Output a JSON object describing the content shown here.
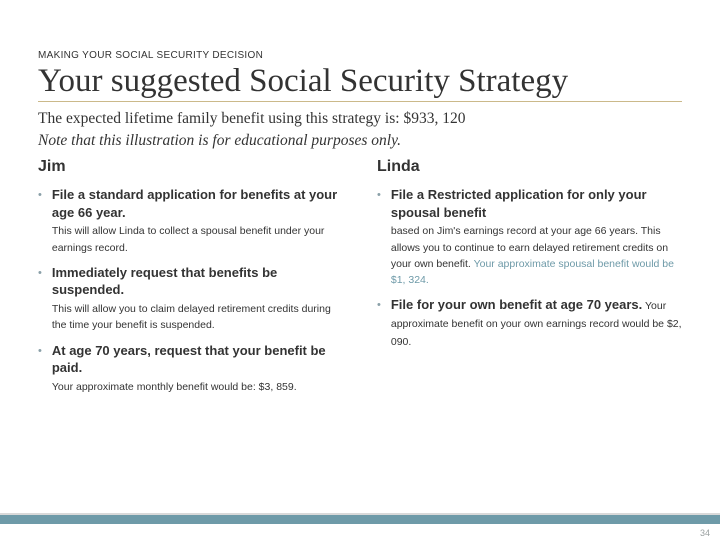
{
  "kicker": "MAKING YOUR SOCIAL SECURITY DECISION",
  "title": "Your suggested Social Security Strategy",
  "subtitle_prefix": "The expected lifetime family benefit using this strategy is: ",
  "subtitle_value": "$933, 120",
  "note": "Note that this illustration is for educational purposes only.",
  "left": {
    "name": "Jim",
    "items": [
      {
        "heading": "File a standard application for benefits at your age 66 year.",
        "detail": "This will allow Linda to collect a spousal benefit under your earnings record."
      },
      {
        "heading": "Immediately request that benefits be suspended.",
        "detail": "This will allow you to claim delayed retirement credits during the time your benefit is suspended."
      },
      {
        "heading": "At age 70 years, request that your benefit be paid.",
        "detail": "Your approximate monthly benefit would be: $3, 859."
      }
    ]
  },
  "right": {
    "name": "Linda",
    "items": [
      {
        "heading": "File a Restricted application for only your spousal benefit",
        "detail_pre": "based on Jim's earnings record at your age 66 years. This allows you to continue to earn delayed retirement credits on your own benefit. ",
        "detail_accent": "Your approximate spousal benefit would be $1, 324."
      },
      {
        "heading": "File for your own benefit at age 70 years.",
        "inline_detail": " Your approximate benefit on your own earnings record would be $2, 090."
      }
    ]
  },
  "page_number": "34",
  "colors": {
    "rule": "#cbb98a",
    "bullet": "#8aa0a8",
    "accent": "#6e9aa8",
    "footer_bar": "#6e9aa8"
  }
}
